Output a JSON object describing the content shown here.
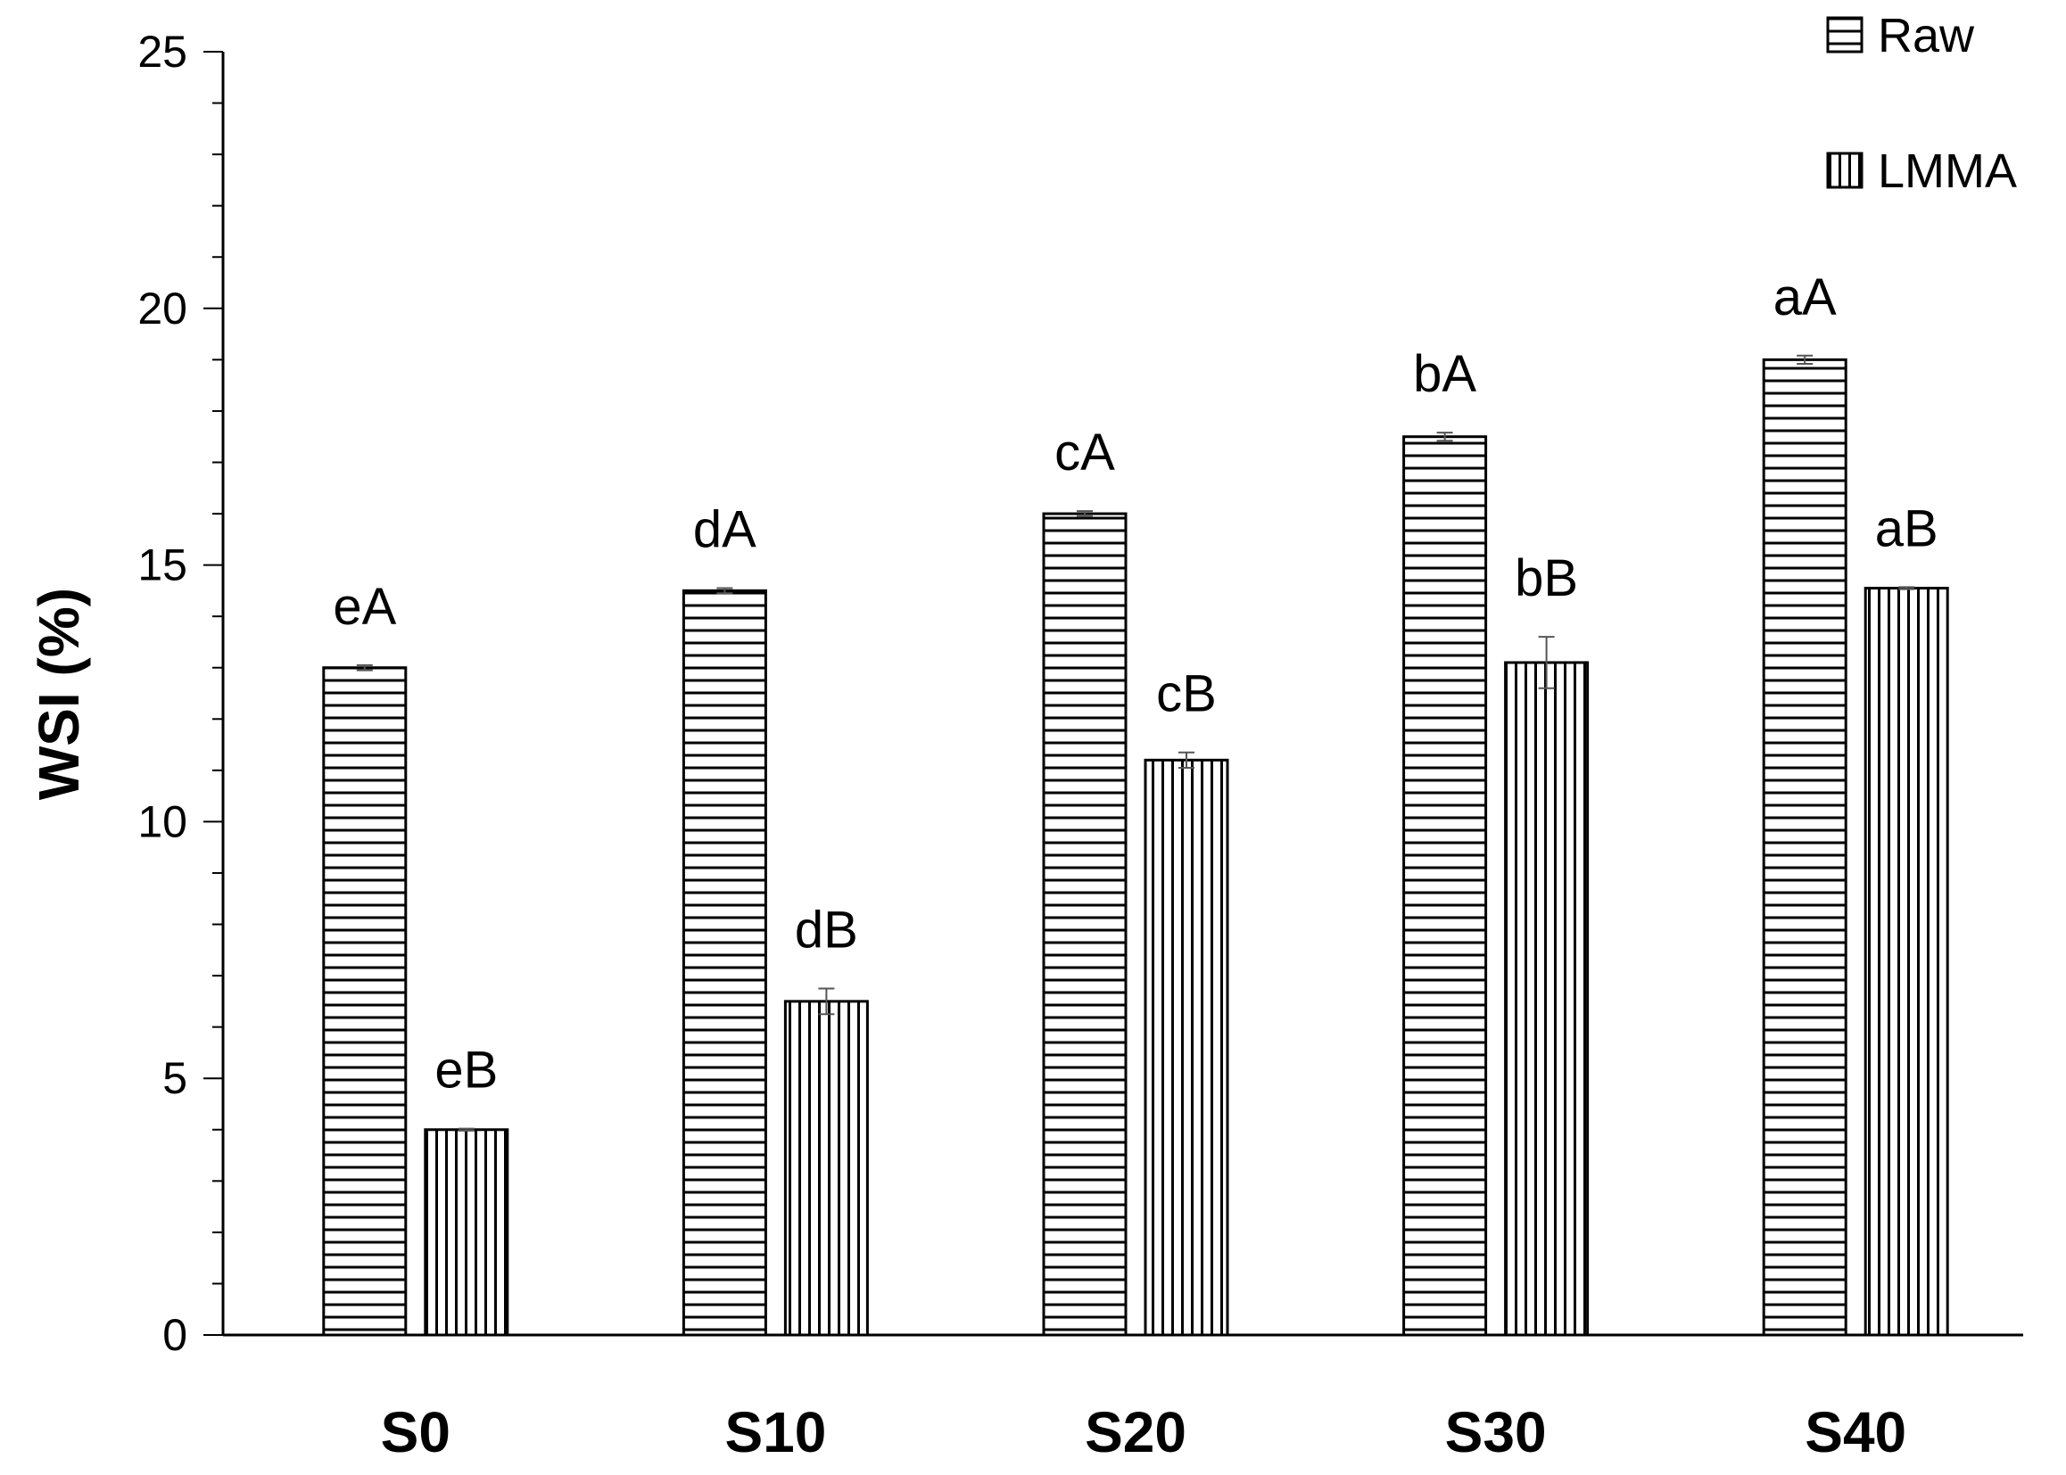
{
  "chart_data": {
    "type": "bar",
    "title": "",
    "xlabel": "",
    "ylabel": "WSI (%)",
    "ylim": [
      0,
      25
    ],
    "yticks": [
      0,
      5,
      10,
      15,
      20,
      25
    ],
    "categories": [
      "S0",
      "S10",
      "S20",
      "S30",
      "S40"
    ],
    "series": [
      {
        "name": "Raw",
        "pattern": "horizontal-lines",
        "values": [
          13.0,
          14.5,
          16.0,
          17.5,
          19.0
        ],
        "errors": [
          0.05,
          0.05,
          0.05,
          0.08,
          0.08
        ],
        "annotations": [
          "eA",
          "dA",
          "cA",
          "bA",
          "aA"
        ]
      },
      {
        "name": "LMMA",
        "pattern": "vertical-lines",
        "values": [
          4.0,
          6.5,
          11.2,
          13.1,
          14.55
        ],
        "errors": [
          0.02,
          0.25,
          0.15,
          0.5,
          0.02
        ],
        "annotations": [
          "eB",
          "dB",
          "cB",
          "bB",
          "aB"
        ]
      }
    ],
    "legend": {
      "position": "top-right"
    },
    "grid": false,
    "colors": {
      "stroke": "#000000",
      "fill": "#ffffff",
      "error": "#555555"
    }
  }
}
